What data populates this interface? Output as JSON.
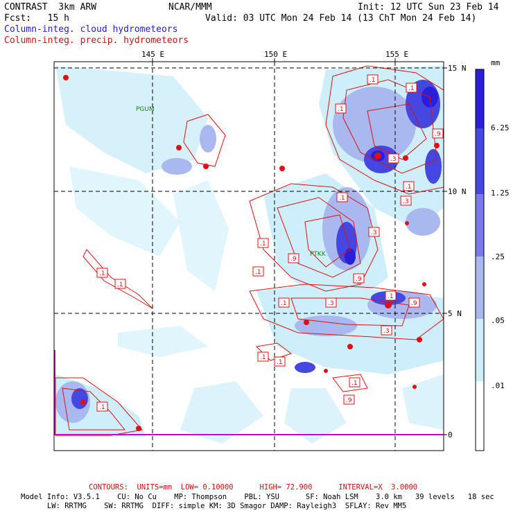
{
  "header": {
    "left_line1": "CONTRAST  3km ARW",
    "left_line2": "Fcst:   15 h",
    "center": "NCAR/MMM",
    "init": "Init: 12 UTC Sun 23 Feb 14",
    "valid": "Valid: 03 UTC Mon 24 Feb 14 (13 ChT Mon 24 Feb 14)",
    "legend_blue": "Column-integ. cloud hydrometeors",
    "legend_red": "Column-integ. precip. hydrometeors"
  },
  "axes": {
    "lon_labels": [
      "145 E",
      "150 E",
      "155 E"
    ],
    "lat_labels": [
      "15 N",
      "10 N",
      "5 N",
      "0"
    ]
  },
  "stations": [
    "PGUM",
    "PTKK"
  ],
  "contour_labels": [
    ".1",
    ".1",
    ".1",
    ".3",
    ".9",
    ".1",
    ".1",
    ".9",
    ".1",
    ".1",
    ".3",
    ".3",
    ".9",
    ".1",
    ".3",
    ".1",
    ".1",
    ".1",
    ".1",
    ".1",
    ".1",
    ".9",
    ".1",
    ".3",
    ".9"
  ],
  "colorbar": {
    "unit": "mm",
    "levels": [
      "6.25",
      "1.25",
      ".25",
      ".05",
      ".01"
    ],
    "colors": [
      "#2a1ed8",
      "#4646e0",
      "#7a7ae8",
      "#aab8f0",
      "#cdeefa",
      "#ffffff"
    ]
  },
  "footer": {
    "contours": "CONTOURS:  UNITS=mm  LOW= 0.10000      HIGH= 72.900      INTERVAL=X  3.0000",
    "model_line1": "Model Info: V3.5.1    CU: No Cu    MP: Thompson    PBL: YSU      SF: Noah LSM    3.0 km   39 levels   18 sec",
    "model_line2": "      LW: RRTMG    SW: RRTMG  DIFF: simple KM: 3D Smagor DAMP: Rayleigh3  SFLAY: Rev MM5"
  }
}
